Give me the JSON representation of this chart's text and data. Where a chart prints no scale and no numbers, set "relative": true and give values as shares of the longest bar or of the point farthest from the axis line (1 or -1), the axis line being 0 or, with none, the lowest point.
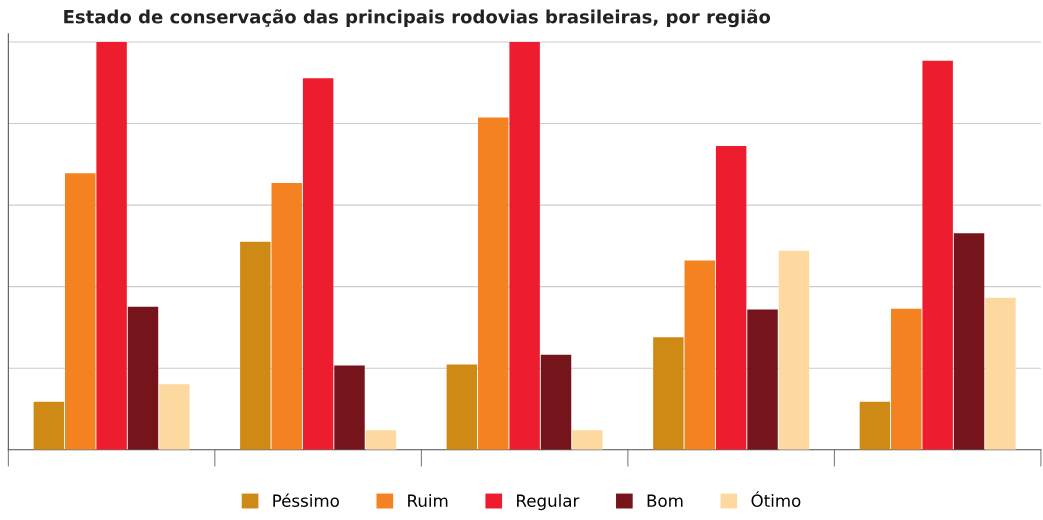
{
  "chart_data": {
    "type": "bar",
    "title": "Estado de conservação das principais rodovias brasileiras, por região",
    "categories": [
      null,
      null,
      null,
      null,
      null
    ],
    "relative": true,
    "grid": "y",
    "legend": "bottom",
    "series": [
      {
        "name": "Péssimo",
        "color": "#cf8a16",
        "values": [
          0.118,
          0.51,
          0.209,
          0.276,
          0.118
        ]
      },
      {
        "name": "Ruim",
        "color": "#f58220",
        "values": [
          0.678,
          0.654,
          0.815,
          0.464,
          0.346
        ]
      },
      {
        "name": "Regular",
        "color": "#ed1c2e",
        "values": [
          1,
          0.911,
          1,
          0.745,
          0.954
        ]
      },
      {
        "name": "Bom",
        "color": "#75141a",
        "values": [
          0.351,
          0.207,
          0.233,
          0.344,
          0.531
        ]
      },
      {
        "name": "Ótimo",
        "color": "#fdd9a0",
        "values": [
          0.161,
          0.048,
          0.048,
          0.488,
          0.373
        ]
      }
    ]
  }
}
